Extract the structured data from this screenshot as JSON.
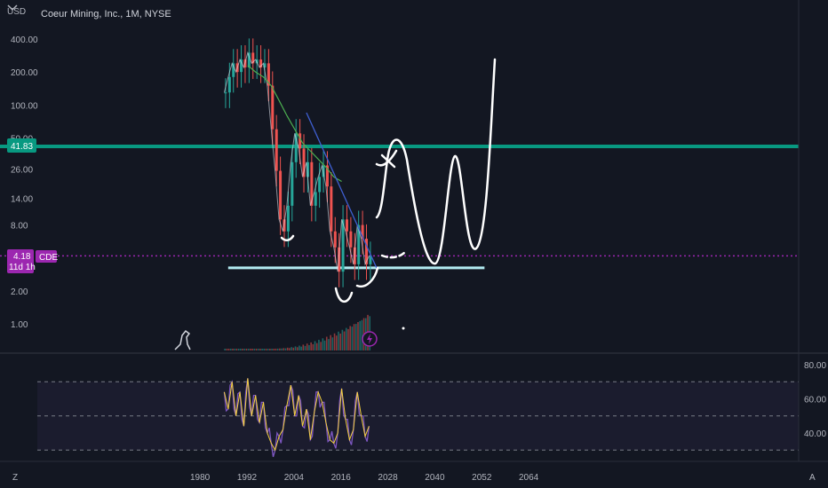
{
  "header": {
    "currency": "USD",
    "title": "Coeur Mining, Inc., 1M, NYSE"
  },
  "price_badges": {
    "level_green": "41.83",
    "last_price": "4.18",
    "countdown": "11d 1h",
    "ticker": "CDE"
  },
  "footer": {
    "left_icon_label": "Z",
    "right_icon_label": "A"
  },
  "colors": {
    "background": "#131722",
    "candle_up": "#26a69a",
    "candle_down": "#ef5350",
    "ma_line": "#4caf50",
    "trend_line": "#3f5fd1",
    "support_line": "#b2ebf2",
    "resistance_line": "#089981",
    "last_price_line": "#9c27b0",
    "rsi_line": "#7e57c2",
    "rsi_ma": "#f4d03f",
    "drawing": "#ffffff"
  },
  "chart_data": [
    {
      "type": "line",
      "title": "Coeur Mining, Inc., 1M, NYSE",
      "y_scale": "log",
      "ylim": [
        0.7,
        480
      ],
      "xlim": [
        1975,
        2078
      ],
      "y_ticks": [
        "400.00",
        "200.00",
        "100.00",
        "50.00",
        "26.00",
        "14.00",
        "8.00",
        "2.00",
        "1.00"
      ],
      "x_ticks": [
        "1980",
        "1992",
        "2004",
        "2016",
        "2028",
        "2040",
        "2052",
        "2064"
      ],
      "series": [
        {
          "values_x": [
            1986,
            1987,
            1988,
            1989,
            1990,
            1991,
            1992,
            1993,
            1994,
            1995,
            1996,
            1997,
            1998,
            1999,
            2000,
            2001,
            2002,
            2003,
            2004,
            2005,
            2006,
            2007,
            2008,
            2009,
            2010,
            2011,
            2012,
            2013,
            2014,
            2015,
            2016,
            2017,
            2018,
            2019,
            2020,
            2021,
            2022,
            2023
          ],
          "values_y": [
            130,
            180,
            240,
            200,
            260,
            220,
            300,
            240,
            260,
            220,
            240,
            150,
            60,
            25,
            9,
            7,
            12,
            30,
            55,
            40,
            22,
            30,
            12,
            16,
            22,
            28,
            18,
            7,
            5,
            3,
            9,
            7,
            5,
            3.5,
            8,
            6,
            3.5,
            4.18
          ]
        }
      ],
      "moving_average": {
        "x": [
          1992,
          1994,
          1996,
          1998,
          2000,
          2002,
          2004,
          2006,
          2008,
          2010,
          2012,
          2014,
          2016
        ],
        "y": [
          230,
          200,
          180,
          150,
          110,
          80,
          60,
          45,
          38,
          32,
          27,
          22,
          20
        ]
      },
      "horizontal_levels": [
        41.83,
        4.18,
        3.25
      ],
      "trend_line": {
        "x": [
          2007,
          2025
        ],
        "y": [
          85,
          3.2
        ]
      }
    },
    {
      "type": "line",
      "title": "RSI",
      "ylim": [
        28,
        82
      ],
      "y_ticks": [
        "80.00",
        "60.00",
        "40.00"
      ],
      "bands": [
        70,
        50,
        30
      ],
      "series": [
        {
          "values_x": [
            1986,
            1987,
            1988,
            1989,
            1990,
            1991,
            1992,
            1993,
            1994,
            1995,
            1996,
            1997,
            1998,
            1999,
            2000,
            2001,
            2002,
            2003,
            2004,
            2005,
            2006,
            2007,
            2008,
            2009,
            2010,
            2011,
            2012,
            2013,
            2014,
            2015,
            2016,
            2017,
            2018,
            2019,
            2020,
            2021,
            2022,
            2023
          ],
          "values_y": [
            64,
            54,
            70,
            50,
            64,
            44,
            72,
            50,
            62,
            46,
            58,
            40,
            34,
            30,
            38,
            42,
            56,
            68,
            50,
            62,
            44,
            54,
            36,
            52,
            64,
            58,
            46,
            36,
            34,
            40,
            66,
            48,
            36,
            42,
            64,
            50,
            38,
            44
          ]
        }
      ]
    }
  ]
}
